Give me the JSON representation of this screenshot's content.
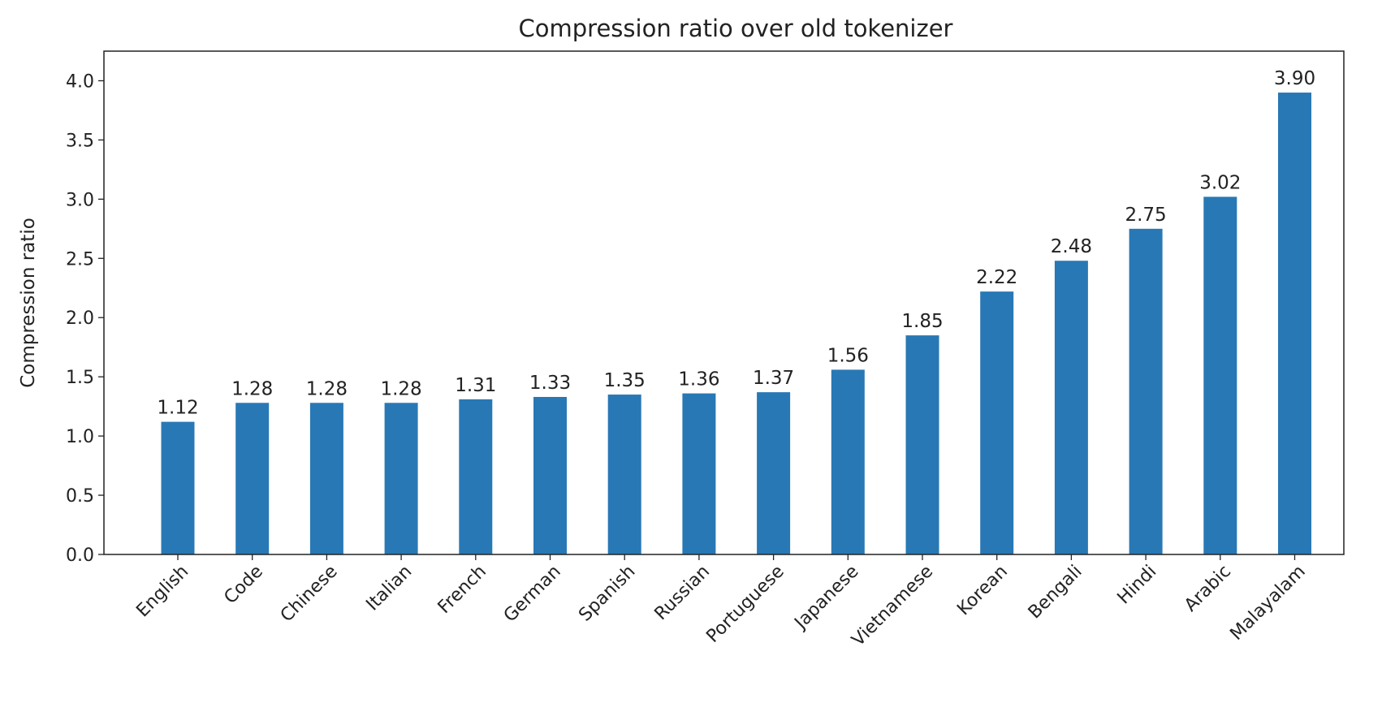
{
  "chart_data": {
    "type": "bar",
    "title": "Compression ratio over old tokenizer",
    "xlabel": "",
    "ylabel": "Compression ratio",
    "categories": [
      "English",
      "Code",
      "Chinese",
      "Italian",
      "French",
      "German",
      "Spanish",
      "Russian",
      "Portuguese",
      "Japanese",
      "Vietnamese",
      "Korean",
      "Bengali",
      "Hindi",
      "Arabic",
      "Malayalam"
    ],
    "values": [
      1.12,
      1.28,
      1.28,
      1.28,
      1.31,
      1.33,
      1.35,
      1.36,
      1.37,
      1.56,
      1.85,
      2.22,
      2.48,
      2.75,
      3.02,
      3.9
    ],
    "data_labels": [
      "1.12",
      "1.28",
      "1.28",
      "1.28",
      "1.31",
      "1.33",
      "1.35",
      "1.36",
      "1.37",
      "1.56",
      "1.85",
      "2.22",
      "2.48",
      "2.75",
      "3.02",
      "3.90"
    ],
    "yticks": [
      "0.0",
      "0.5",
      "1.0",
      "1.5",
      "2.0",
      "2.5",
      "3.0",
      "3.5",
      "4.0"
    ],
    "ylim": [
      0,
      4.25
    ],
    "grid": false,
    "bar_color": "#2878b5"
  }
}
